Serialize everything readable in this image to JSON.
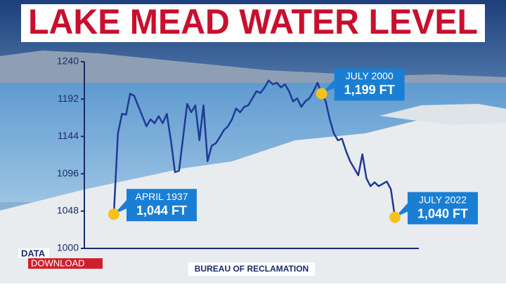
{
  "chart_data": {
    "type": "line",
    "title": "LAKE MEAD WATER LEVEL",
    "source": "BUREAU OF RECLAMATION",
    "brand": {
      "line1": "DATA",
      "line2": "DOWNLOAD"
    },
    "color": "#1f3a93",
    "categories": [
      "APRIL 1937",
      null,
      null,
      null,
      null,
      null,
      null,
      null,
      null,
      null,
      null,
      null,
      null,
      null,
      null,
      null,
      null,
      null,
      null,
      null,
      null,
      null,
      null,
      null,
      null,
      null,
      null,
      null,
      null,
      null,
      null,
      null,
      null,
      null,
      null,
      null,
      null,
      null,
      null,
      null,
      null,
      null,
      null,
      null,
      null,
      null,
      null,
      null,
      null,
      null,
      null,
      "JULY 2000",
      null,
      null,
      null,
      null,
      null,
      null,
      null,
      null,
      null,
      null,
      null,
      null,
      null,
      null,
      null,
      null,
      null,
      "JULY 2022"
    ],
    "values": [
      1044,
      1148,
      1173,
      1172,
      1199,
      1196,
      1183,
      1170,
      1157,
      1166,
      1161,
      1170,
      1161,
      1173,
      1139,
      1098,
      1100,
      1143,
      1186,
      1175,
      1184,
      1139,
      1184,
      1112,
      1132,
      1135,
      1143,
      1152,
      1157,
      1166,
      1180,
      1175,
      1182,
      1184,
      1193,
      1202,
      1200,
      1207,
      1216,
      1211,
      1213,
      1207,
      1211,
      1202,
      1189,
      1193,
      1182,
      1189,
      1193,
      1202,
      1213,
      1199,
      1189,
      1166,
      1148,
      1139,
      1141,
      1125,
      1112,
      1103,
      1094,
      1121,
      1090,
      1080,
      1085,
      1080,
      1083,
      1086,
      1076,
      1040
    ],
    "value_labels": [
      "1,044 FT",
      null,
      null,
      null,
      null,
      null,
      null,
      null,
      null,
      null,
      null,
      null,
      null,
      null,
      null,
      null,
      null,
      null,
      null,
      null,
      null,
      null,
      null,
      null,
      null,
      null,
      null,
      null,
      null,
      null,
      null,
      null,
      null,
      null,
      null,
      null,
      null,
      null,
      null,
      null,
      null,
      null,
      null,
      null,
      null,
      null,
      null,
      null,
      null,
      null,
      null,
      "1,199 FT",
      null,
      null,
      null,
      null,
      null,
      null,
      null,
      null,
      null,
      null,
      null,
      null,
      null,
      null,
      null,
      null,
      null,
      "1,040 FT"
    ],
    "ylim": [
      1000,
      1240
    ],
    "yticks": [
      1000,
      1048,
      1096,
      1144,
      1192,
      1240
    ],
    "grid": false
  }
}
